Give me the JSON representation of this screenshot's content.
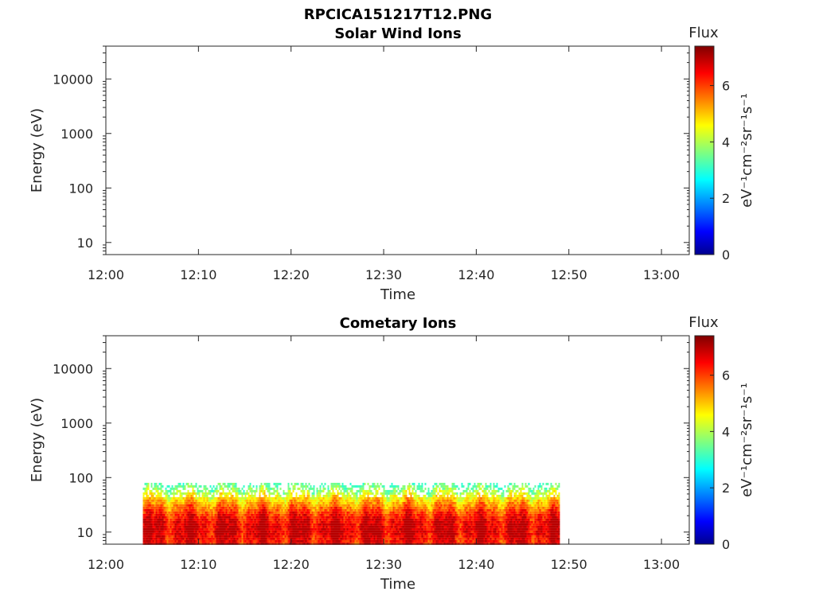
{
  "figure_title": "RPCICA151217T12.PNG",
  "chart_data": [
    {
      "type": "heatmap",
      "title": "Solar Wind Ions",
      "xlabel": "Time",
      "ylabel": "Energy (eV)",
      "x_ticks": [
        "12:00",
        "12:10",
        "12:20",
        "12:30",
        "12:40",
        "12:50",
        "13:00"
      ],
      "xlim": [
        "12:00",
        "13:03"
      ],
      "y_scale": "log",
      "y_ticks": [
        "10",
        "100",
        "1000",
        "10000"
      ],
      "ylim": [
        6,
        40000
      ],
      "colorbar": {
        "label": "Flux",
        "units": "eV⁻¹cm⁻²sr⁻¹s⁻¹",
        "ticks": [
          "0",
          "2",
          "4",
          "6"
        ],
        "range": [
          0,
          7.4
        ],
        "colormap": "jet"
      },
      "data_coverage": null
    },
    {
      "type": "heatmap",
      "title": "Cometary Ions",
      "xlabel": "Time",
      "ylabel": "Energy (eV)",
      "x_ticks": [
        "12:00",
        "12:10",
        "12:20",
        "12:30",
        "12:40",
        "12:50",
        "13:00"
      ],
      "xlim": [
        "12:00",
        "13:03"
      ],
      "y_scale": "log",
      "y_ticks": [
        "10",
        "100",
        "1000",
        "10000"
      ],
      "ylim": [
        6,
        40000
      ],
      "colorbar": {
        "label": "Flux",
        "units": "eV⁻¹cm⁻²sr⁻¹s⁻¹",
        "ticks": [
          "0",
          "2",
          "4",
          "6"
        ],
        "range": [
          0,
          7.4
        ],
        "colormap": "jet"
      },
      "data_coverage": {
        "time_start": "12:04",
        "time_end": "12:49",
        "energy_min": 6,
        "energy_max": 80
      },
      "flux_profile": [
        {
          "energy": 7,
          "flux": 6.5
        },
        {
          "energy": 10,
          "flux": 6.8
        },
        {
          "energy": 15,
          "flux": 6.7
        },
        {
          "energy": 20,
          "flux": 6.3
        },
        {
          "energy": 30,
          "flux": 5.5
        },
        {
          "energy": 45,
          "flux": 4.6
        },
        {
          "energy": 60,
          "flux": 3.8
        },
        {
          "energy": 80,
          "flux": 3.0
        }
      ]
    }
  ]
}
